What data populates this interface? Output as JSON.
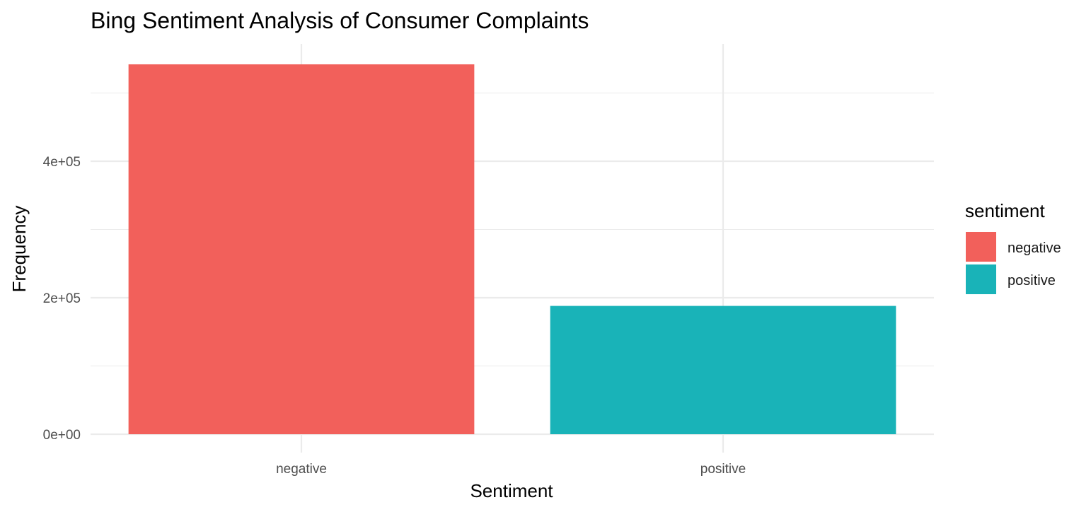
{
  "chart_data": {
    "type": "bar",
    "title": "Bing Sentiment Analysis of Consumer Complaints",
    "xlabel": "Sentiment",
    "ylabel": "Frequency",
    "categories": [
      "negative",
      "positive"
    ],
    "values": [
      542000,
      188000
    ],
    "colors": [
      "#F2605B",
      "#19B3B8"
    ],
    "ylim": [
      0,
      560000
    ],
    "yticks": [
      0,
      200000,
      400000
    ],
    "ytick_labels": [
      "0e+00",
      "2e+05",
      "4e+05"
    ],
    "grid": true,
    "legend": {
      "title": "sentiment",
      "position": "right",
      "entries": [
        {
          "label": "negative",
          "color": "#F2605B"
        },
        {
          "label": "positive",
          "color": "#19B3B8"
        }
      ]
    }
  }
}
